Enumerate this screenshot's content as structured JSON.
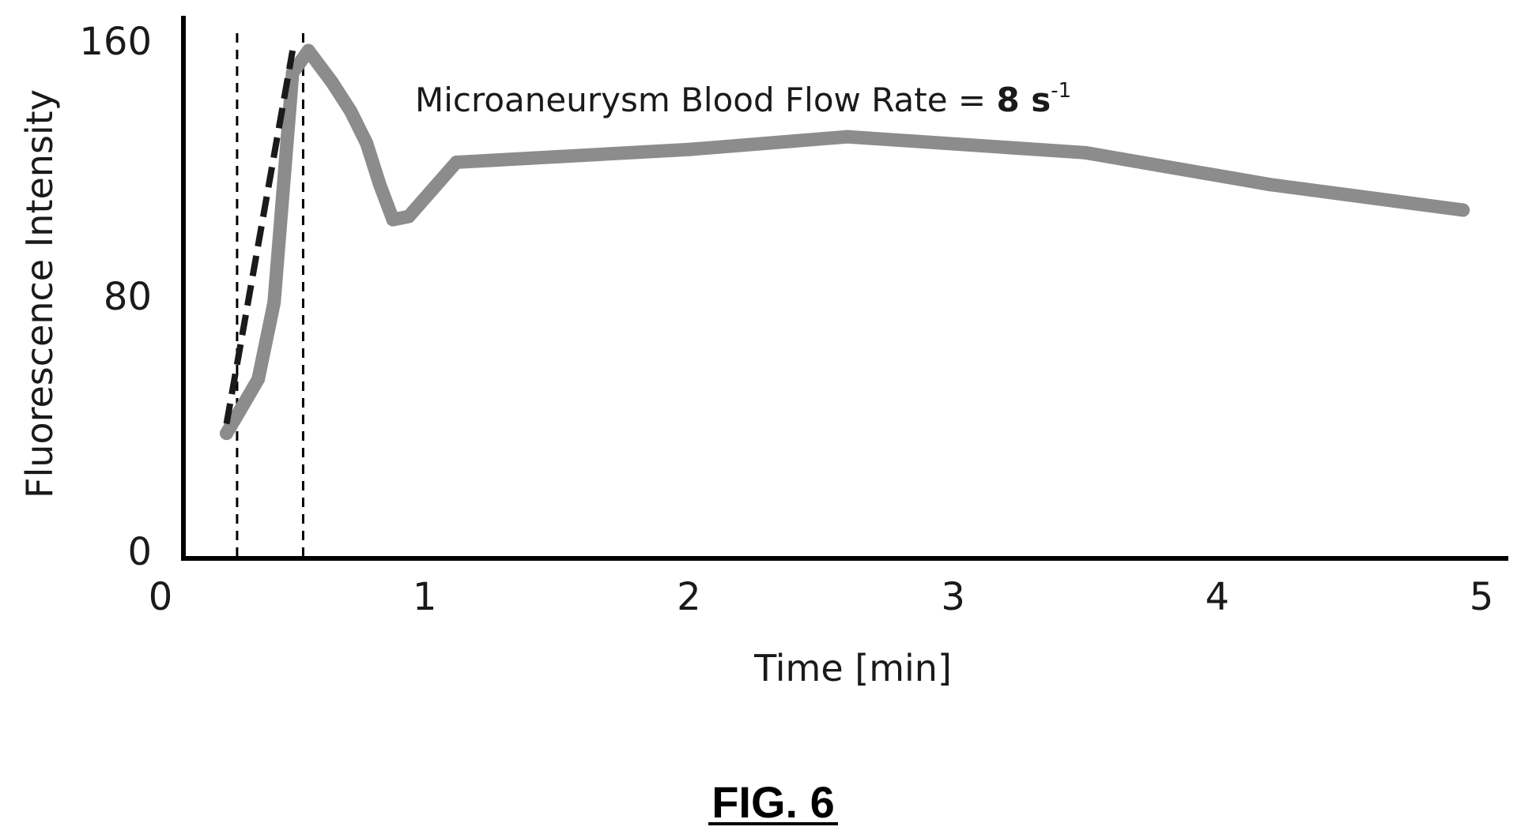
{
  "chart_data": {
    "type": "line",
    "xlabel": "Time [min]",
    "ylabel": "Fluorescence Intensity",
    "xlim": [
      0,
      5
    ],
    "ylim": [
      0,
      160
    ],
    "x_ticks": [
      "0",
      "1",
      "2",
      "3",
      "4",
      "5"
    ],
    "y_ticks": [
      "0",
      "80",
      "160"
    ],
    "grid": false,
    "series": [
      {
        "color": "#8c8c8c",
        "x": [
          0.25,
          0.3,
          0.37,
          0.43,
          0.5,
          0.56,
          0.65,
          0.72,
          0.78,
          0.83,
          0.88,
          0.94,
          1.12,
          2.0,
          2.6,
          3.5,
          4.2,
          4.93
        ],
        "y": [
          37,
          44,
          54,
          78,
          150,
          157,
          147,
          138,
          128,
          115,
          104,
          105,
          122,
          126,
          130,
          125,
          115,
          107
        ]
      }
    ],
    "slope_line": {
      "color": "#1a1a1a",
      "x": [
        0.25,
        0.5
      ],
      "y": [
        40,
        157
      ]
    },
    "vertical_markers": [
      0.29,
      0.54
    ],
    "annotation": {
      "text": "Microaneurysm  Blood Flow  Rate  = ",
      "value": "8 s",
      "superscript": "-1"
    },
    "caption": "FIG. 6"
  }
}
